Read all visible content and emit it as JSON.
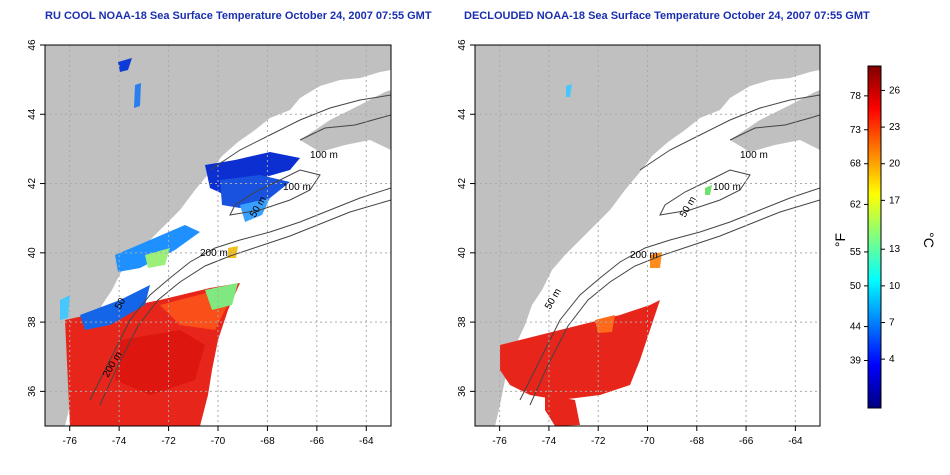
{
  "panels": [
    {
      "title": "RU COOL NOAA-18 Sea Surface Temperature October 24, 2007 07:55 GMT",
      "contour_labels": [
        "100 m",
        "100 m",
        "50 m",
        "200 m",
        "50",
        "200 m"
      ]
    },
    {
      "title": "DECLOUDED NOAA-18 Sea Surface Temperature October 24, 2007 07:55 GMT",
      "contour_labels": [
        "100 m",
        "100 m",
        "50 m",
        "200 m",
        "50 m"
      ]
    }
  ],
  "axes": {
    "x_ticks": [
      "-76",
      "-74",
      "-72",
      "-70",
      "-68",
      "-66",
      "-64"
    ],
    "y_ticks": [
      "36",
      "38",
      "40",
      "42",
      "44",
      "46"
    ],
    "lon_range": [
      -77,
      -63
    ],
    "lat_range": [
      35,
      46
    ]
  },
  "colorbar": {
    "f_label": "°F",
    "c_label": "°C",
    "f_ticks": [
      "78",
      "73",
      "68",
      "62",
      "55",
      "50",
      "44",
      "39"
    ],
    "c_ticks": [
      "26",
      "23",
      "20",
      "17",
      "13",
      "10",
      "7",
      "4"
    ],
    "colors": [
      "#00007f",
      "#0000ff",
      "#0080ff",
      "#00ffff",
      "#80ff80",
      "#ffff00",
      "#ff8000",
      "#ff0000",
      "#7f0000"
    ]
  },
  "colors": {
    "land": "#c0c0c0",
    "contour": "#444444",
    "grid": "#aaaaaa",
    "title": "#1a2fb0"
  }
}
